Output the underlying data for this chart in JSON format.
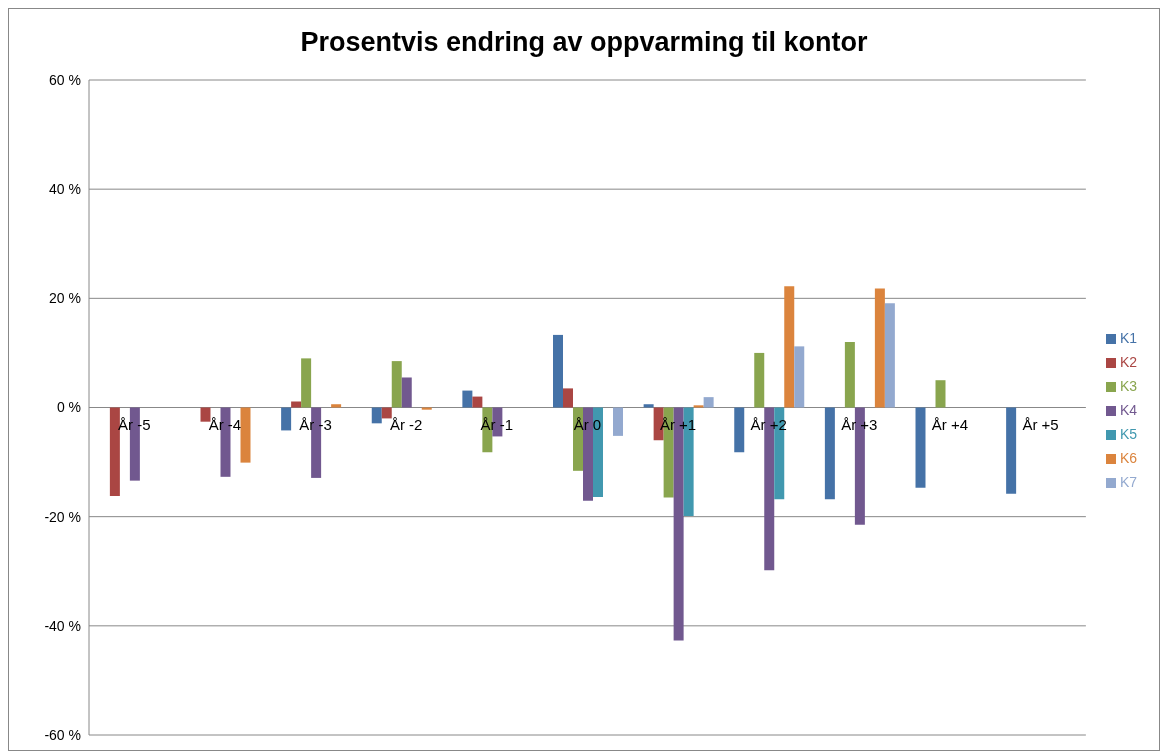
{
  "chart_data": {
    "type": "bar",
    "title": "Prosentvis endring av oppvarming til kontor",
    "categories": [
      "År -5",
      "År -4",
      "År -3",
      "År -2",
      "År -1",
      "År 0",
      "År +1",
      "År +2",
      "År +3",
      "År +4",
      "År +5"
    ],
    "series": [
      {
        "name": "K1",
        "color": "#4572a7",
        "values": [
          null,
          null,
          -4.2,
          -2.9,
          3.1,
          13.3,
          0.6,
          -8.2,
          -16.8,
          -14.7,
          -15.8
        ]
      },
      {
        "name": "K2",
        "color": "#aa4643",
        "values": [
          -16.2,
          -2.6,
          1.1,
          -2.0,
          2.0,
          3.5,
          -6.0,
          null,
          null,
          null,
          null
        ]
      },
      {
        "name": "K3",
        "color": "#89a54e",
        "values": [
          null,
          null,
          9.0,
          8.5,
          -8.2,
          -11.6,
          -16.5,
          10.0,
          12.0,
          5.0,
          null
        ]
      },
      {
        "name": "K4",
        "color": "#71588f",
        "values": [
          -13.4,
          -12.7,
          -12.9,
          5.5,
          -5.3,
          -17.1,
          -42.7,
          -29.8,
          -21.5,
          null,
          null
        ]
      },
      {
        "name": "K5",
        "color": "#4198af",
        "values": [
          null,
          null,
          null,
          null,
          null,
          -16.4,
          -19.9,
          -16.8,
          null,
          null,
          null
        ]
      },
      {
        "name": "K6",
        "color": "#db843d",
        "values": [
          null,
          -10.1,
          0.6,
          -0.4,
          null,
          null,
          0.4,
          22.2,
          21.8,
          null,
          null
        ]
      },
      {
        "name": "K7",
        "color": "#93a9cf",
        "values": [
          null,
          null,
          null,
          null,
          null,
          -5.2,
          1.9,
          11.2,
          19.1,
          null,
          null
        ]
      }
    ],
    "ylim": [
      -60,
      60
    ],
    "yticks": [
      {
        "value": -60,
        "label": "-60 %"
      },
      {
        "value": -40,
        "label": "-40 %"
      },
      {
        "value": -20,
        "label": "-20 %"
      },
      {
        "value": 0,
        "label": "0 %"
      },
      {
        "value": 20,
        "label": "20 %"
      },
      {
        "value": 40,
        "label": "40 %"
      },
      {
        "value": 60,
        "label": "60 %"
      }
    ],
    "grid": "y",
    "legend": "right"
  }
}
